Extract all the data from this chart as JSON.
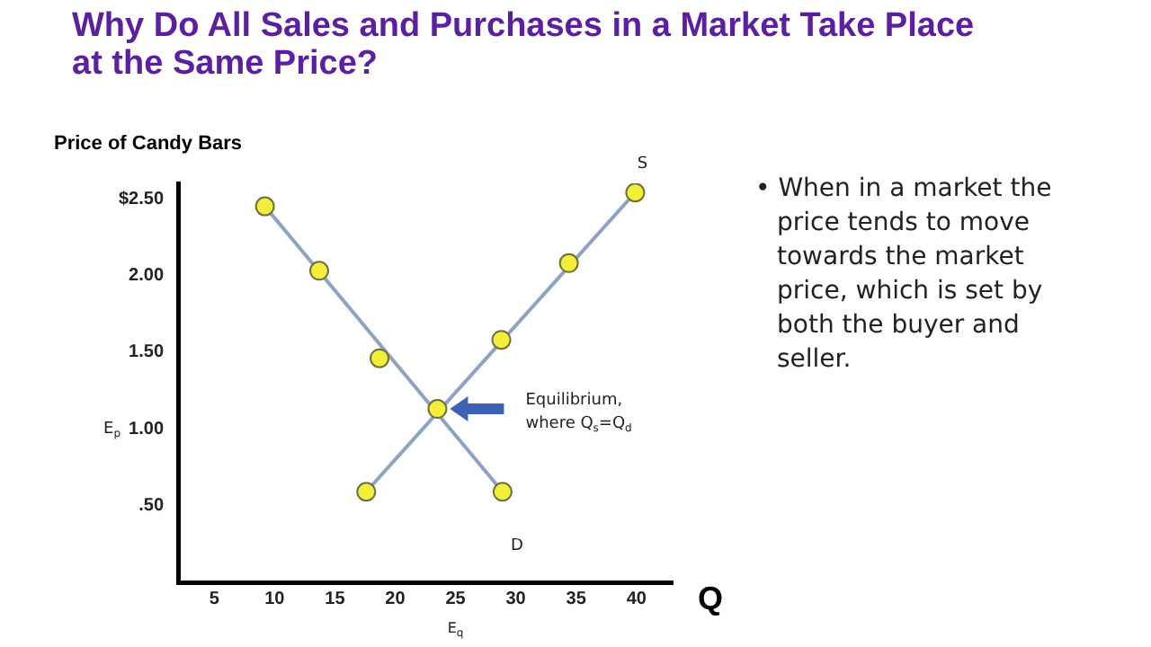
{
  "chart_data": {
    "type": "line",
    "title": "Why Do All Sales and Purchases in a Market Take Place at the Same Price?",
    "ylabel": "Price of Candy Bars",
    "xlabel": "Q",
    "xlim": [
      2,
      43
    ],
    "xticks": [
      5,
      10,
      15,
      20,
      25,
      30,
      35,
      40
    ],
    "ylim": [
      0,
      2.6
    ],
    "yticks": [
      {
        "value": 2.5,
        "label": "$2.50"
      },
      {
        "value": 2,
        "label": "2.00"
      },
      {
        "value": 1.5,
        "label": "1.50"
      },
      {
        "value": 1,
        "label": "1.00"
      },
      {
        "value": 0.5,
        "label": ".50"
      }
    ],
    "grid": false,
    "legend": false,
    "series": [
      {
        "name": "S",
        "type": "line",
        "color": "#8ea2c6",
        "x": [
          17.6,
          39.9
        ],
        "values": [
          0.59,
          2.54
        ]
      },
      {
        "name": "D",
        "type": "line",
        "color": "#8ea2c6",
        "x": [
          9.2,
          28.9
        ],
        "values": [
          2.45,
          0.59
        ]
      },
      {
        "type": "scatter",
        "marker": "circle",
        "color": "#f2ee3a",
        "x": [
          17.6,
          23.5,
          28.8,
          34.4,
          39.9
        ],
        "values": [
          0.59,
          1.13,
          1.58,
          2.08,
          2.54
        ]
      },
      {
        "type": "scatter",
        "marker": "circle",
        "color": "#f2ee3a",
        "x": [
          9.2,
          13.7,
          18.7,
          28.9
        ],
        "values": [
          2.45,
          2.03,
          1.46,
          0.59
        ]
      }
    ],
    "annotations": [
      "Equilibrium, where Q$_{s}$=Q$_{d}$",
      "E$_{p}$",
      "E$_{q}$",
      "• When in a market the price tends to move towards the market price, which is set by both the buyer and seller."
    ]
  }
}
